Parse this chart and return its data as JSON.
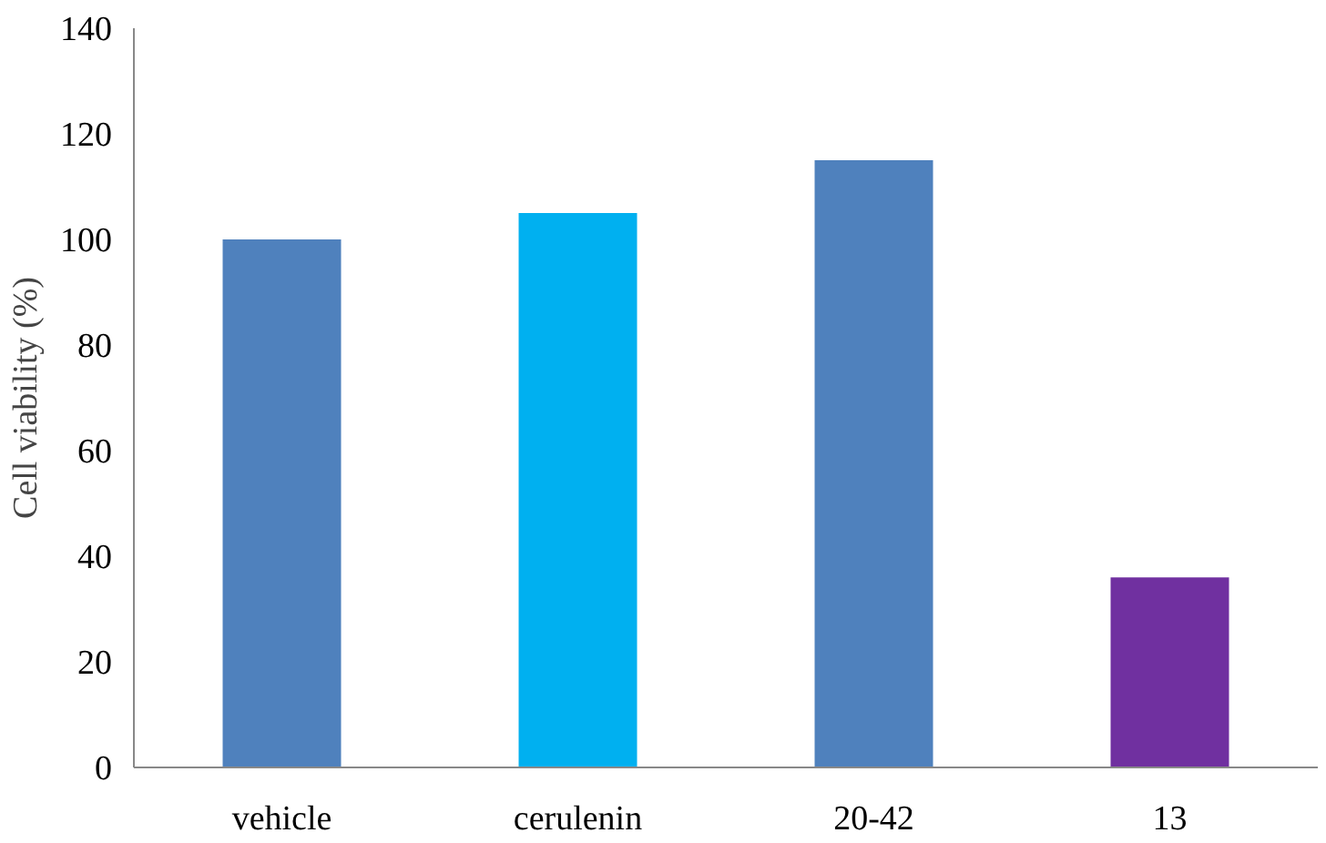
{
  "chart_data": {
    "type": "bar",
    "ylabel": "Cell viability (%)",
    "categories": [
      "vehicle",
      "cerulenin",
      "20-42",
      "13"
    ],
    "values": [
      100,
      105,
      115,
      36
    ],
    "colors": [
      "#4f81bd",
      "#00b0f0",
      "#4f81bd",
      "#7030a0"
    ],
    "ylim": [
      0,
      140
    ],
    "yticks": [
      0,
      20,
      40,
      60,
      80,
      100,
      120,
      140
    ],
    "grid": false
  }
}
